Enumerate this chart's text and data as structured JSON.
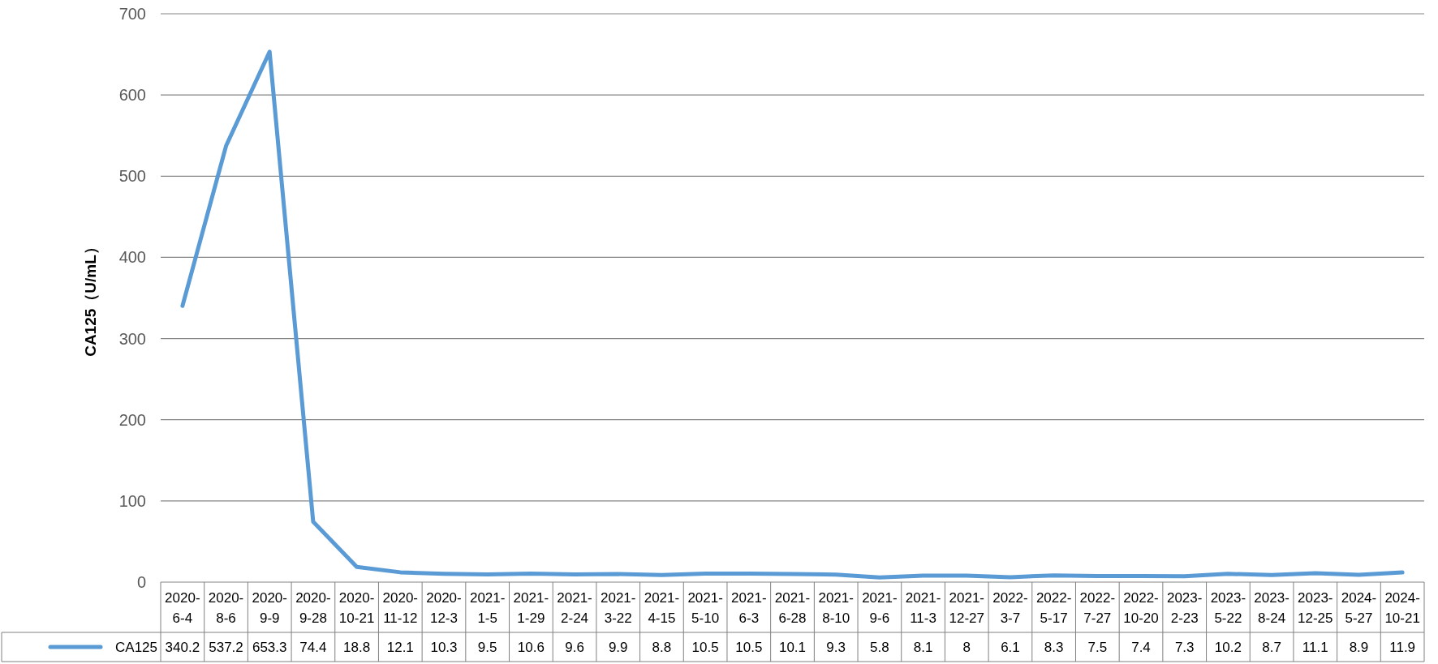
{
  "chart_data": {
    "type": "line",
    "ylabel": "CA125（U/mL）",
    "categories": [
      "2020-6-4",
      "2020-8-6",
      "2020-9-9",
      "2020-9-28",
      "2020-10-21",
      "2020-11-12",
      "2020-12-3",
      "2021-1-5",
      "2021-1-29",
      "2021-2-24",
      "2021-3-22",
      "2021-4-15",
      "2021-5-10",
      "2021-6-3",
      "2021-6-28",
      "2021-8-10",
      "2021-9-6",
      "2021-11-3",
      "2021-12-27",
      "2022-3-7",
      "2022-5-17",
      "2022-7-27",
      "2022-10-20",
      "2023-2-23",
      "2023-5-22",
      "2023-8-24",
      "2023-12-25",
      "2024-5-27",
      "2024-10-21"
    ],
    "series": [
      {
        "name": "CA125",
        "color": "#5b9bd5",
        "values": [
          340.2,
          537.2,
          653.3,
          74.4,
          18.8,
          12.1,
          10.3,
          9.5,
          10.6,
          9.6,
          9.9,
          8.8,
          10.5,
          10.5,
          10.1,
          9.3,
          5.8,
          8.1,
          8,
          6.1,
          8.3,
          7.5,
          7.4,
          7.3,
          10.2,
          8.7,
          11.1,
          8.9,
          11.9
        ]
      }
    ],
    "ylim": [
      0,
      700
    ],
    "yticks": [
      0,
      100,
      200,
      300,
      400,
      500,
      600,
      700
    ],
    "grid": "y",
    "legend": "bottom",
    "data_labels": true,
    "marker": "none",
    "line_style": "solid"
  }
}
